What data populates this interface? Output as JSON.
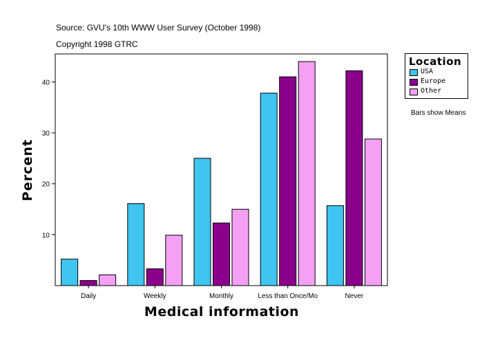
{
  "header": {
    "source": "Source: GVU's 10th WWW User Survey (October 1998)",
    "copyright": "Copyright 1998 GTRC"
  },
  "legend": {
    "title": "Location",
    "placement": "right"
  },
  "note": "Bars show Means",
  "colors": {
    "USA": "#40c4f0",
    "Europe": "#8b008b",
    "Other": "#f4a0f4"
  },
  "chart_data": {
    "type": "bar",
    "title": "",
    "xlabel": "Medical information",
    "ylabel": "Percent",
    "categories": [
      "Daily",
      "Weekly",
      "Monthly",
      "Less than Once/Mo",
      "Never"
    ],
    "series": [
      {
        "name": "USA",
        "values": [
          5.2,
          16.1,
          25.0,
          37.8,
          15.7
        ]
      },
      {
        "name": "Europe",
        "values": [
          1.0,
          3.3,
          12.3,
          41.0,
          42.2
        ]
      },
      {
        "name": "Other",
        "values": [
          2.1,
          9.9,
          15.0,
          44.0,
          28.8
        ]
      }
    ],
    "ylim": [
      0,
      45.5
    ],
    "yticks": [
      10,
      20,
      30,
      40
    ],
    "grid": false
  }
}
